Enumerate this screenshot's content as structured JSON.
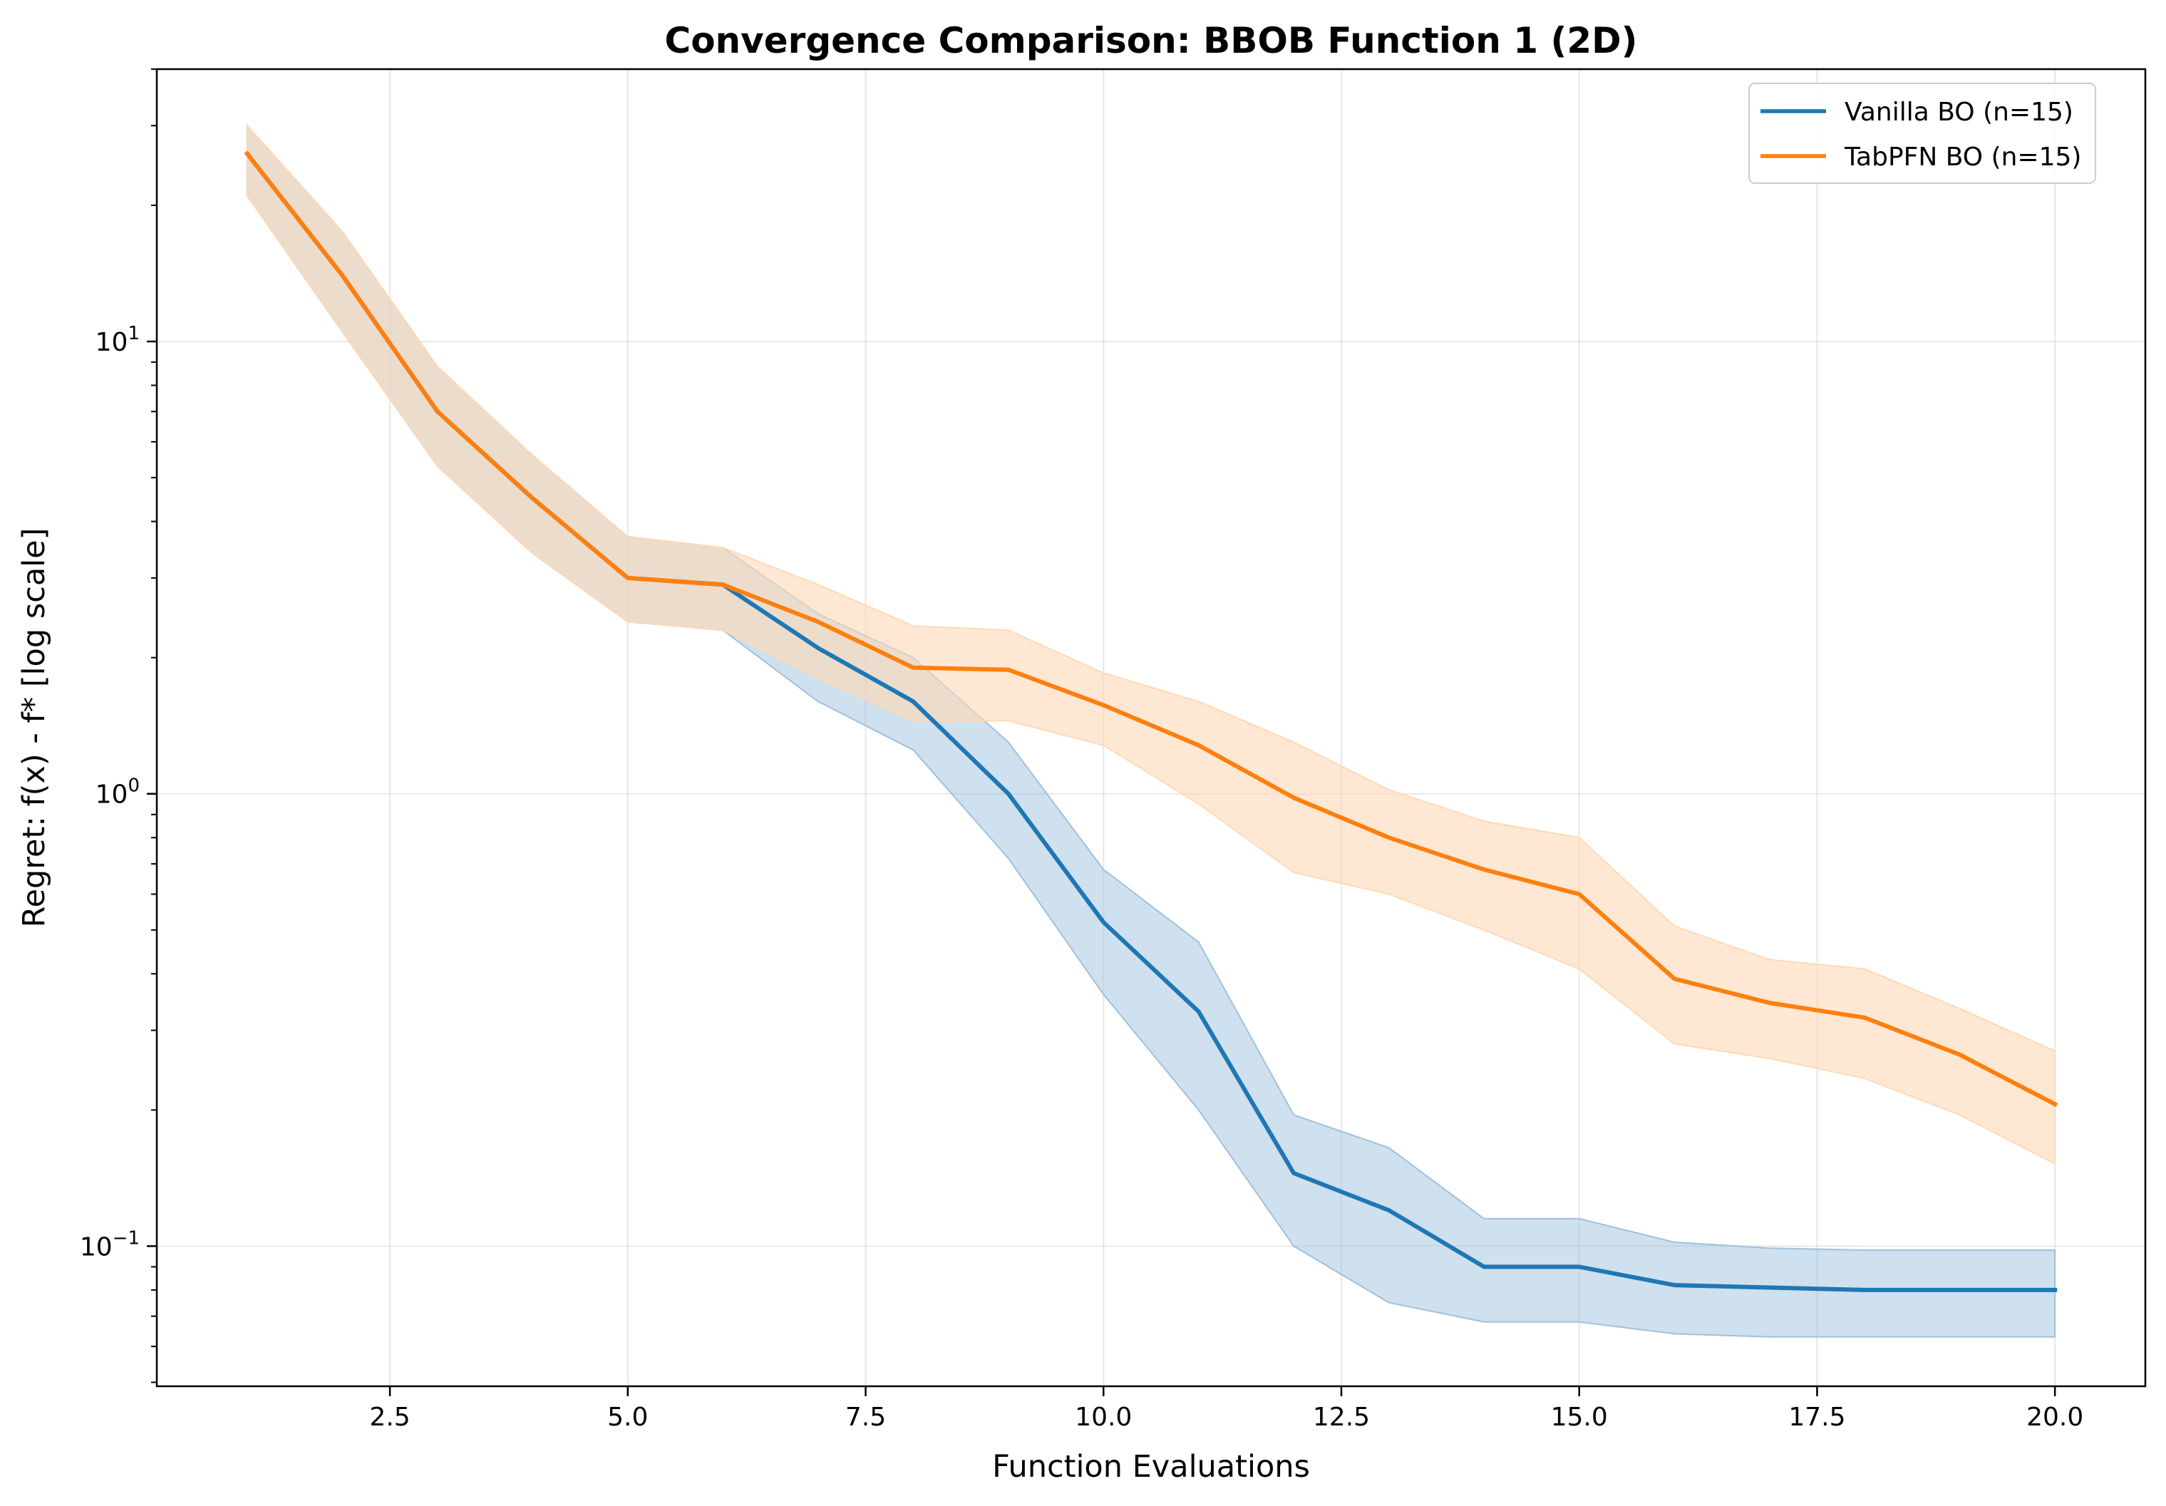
{
  "chart_data": {
    "type": "line",
    "title": "Convergence Comparison: BBOB Function 1 (2D)",
    "xlabel": "Function Evaluations",
    "ylabel": "Regret: f(x) - f* [log scale]",
    "yscale": "log",
    "xlim": [
      0.05,
      20.95
    ],
    "ylim": [
      0.049,
      40
    ],
    "grid": true,
    "legend_position": "top-right",
    "x_ticks": [
      2.5,
      5.0,
      7.5,
      10.0,
      12.5,
      15.0,
      17.5,
      20.0
    ],
    "x_tick_labels": [
      "2.5",
      "5.0",
      "7.5",
      "10.0",
      "12.5",
      "15.0",
      "17.5",
      "20.0"
    ],
    "y_ticks": [
      {
        "value": 0.1,
        "base": "10",
        "exp": "−1"
      },
      {
        "value": 1,
        "base": "10",
        "exp": "0"
      },
      {
        "value": 10,
        "base": "10",
        "exp": "1"
      }
    ],
    "x": [
      1,
      2,
      3,
      4,
      5,
      6,
      7,
      8,
      9,
      10,
      11,
      12,
      13,
      14,
      15,
      16,
      17,
      18,
      19,
      20
    ],
    "series": [
      {
        "name": "Vanilla BO (n=15)",
        "color": "#1f77b4",
        "band_color": "#9fc1dd",
        "values": [
          26.0,
          14.0,
          7.0,
          4.5,
          3.0,
          2.9,
          2.1,
          1.6,
          1.0,
          0.52,
          0.33,
          0.145,
          0.12,
          0.09,
          0.09,
          0.082,
          0.081,
          0.08,
          0.08,
          0.08
        ],
        "lower": [
          21.0,
          10.5,
          5.3,
          3.4,
          2.4,
          2.3,
          1.6,
          1.25,
          0.72,
          0.36,
          0.2,
          0.1,
          0.075,
          0.068,
          0.068,
          0.064,
          0.063,
          0.063,
          0.063,
          0.063
        ],
        "upper": [
          30.0,
          17.5,
          8.8,
          5.6,
          3.7,
          3.5,
          2.5,
          2.0,
          1.3,
          0.68,
          0.47,
          0.195,
          0.165,
          0.115,
          0.115,
          0.102,
          0.099,
          0.098,
          0.098,
          0.098
        ]
      },
      {
        "name": "TabPFN BO (n=15)",
        "color": "#ff7f0e",
        "band_color": "#ffd9b5",
        "values": [
          26.0,
          14.0,
          7.0,
          4.5,
          3.0,
          2.9,
          2.4,
          1.9,
          1.88,
          1.57,
          1.28,
          0.98,
          0.8,
          0.68,
          0.6,
          0.39,
          0.345,
          0.32,
          0.265,
          0.206
        ],
        "lower": [
          21.0,
          10.5,
          5.3,
          3.4,
          2.4,
          2.3,
          1.8,
          1.45,
          1.45,
          1.28,
          0.95,
          0.67,
          0.6,
          0.5,
          0.41,
          0.28,
          0.26,
          0.235,
          0.195,
          0.152
        ],
        "upper": [
          30.0,
          17.5,
          8.8,
          5.6,
          3.7,
          3.5,
          2.9,
          2.35,
          2.3,
          1.85,
          1.6,
          1.3,
          1.02,
          0.87,
          0.8,
          0.51,
          0.43,
          0.41,
          0.335,
          0.27
        ]
      }
    ]
  }
}
